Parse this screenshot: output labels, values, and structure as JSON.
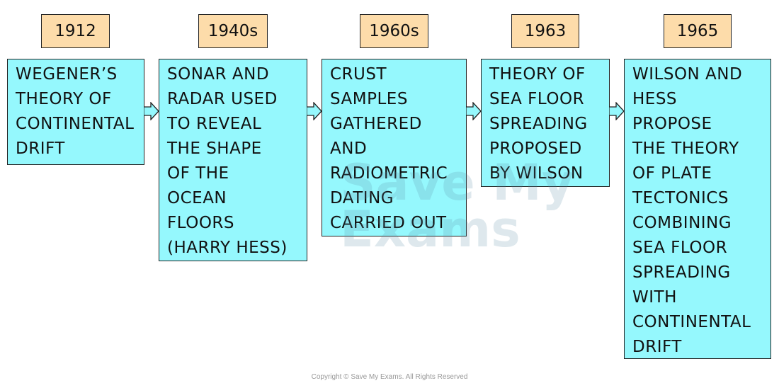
{
  "colors": {
    "year_fill": "#fddcaa",
    "event_fill": "#95f8fd",
    "outline": "#222222"
  },
  "timeline": [
    {
      "year": "1912",
      "lines": [
        "WEGENER’S",
        "THEORY OF",
        "CONTINENTAL",
        "DRIFT"
      ]
    },
    {
      "year": "1940s",
      "lines": [
        "SONAR AND",
        "RADAR USED",
        "TO REVEAL",
        "THE SHAPE",
        "OF THE",
        "OCEAN",
        "FLOORS",
        "(HARRY HESS)"
      ]
    },
    {
      "year": "1960s",
      "lines": [
        "CRUST",
        "SAMPLES",
        "GATHERED",
        "AND",
        "RADIOMETRIC",
        "DATING",
        "CARRIED OUT"
      ]
    },
    {
      "year": "1963",
      "lines": [
        "THEORY OF",
        "SEA FLOOR",
        "SPREADING",
        "PROPOSED",
        "BY WILSON"
      ]
    },
    {
      "year": "1965",
      "lines": [
        "WILSON AND",
        "HESS",
        "PROPOSE",
        "THE THEORY",
        "OF PLATE",
        "TECTONICS",
        "COMBINING",
        "SEA FLOOR",
        "SPREADING",
        "WITH",
        "CONTINENTAL",
        "DRIFT"
      ]
    }
  ],
  "watermark": [
    "Save My",
    "Exams"
  ],
  "copyright": "Copyright © Save My Exams. All Rights Reserved"
}
